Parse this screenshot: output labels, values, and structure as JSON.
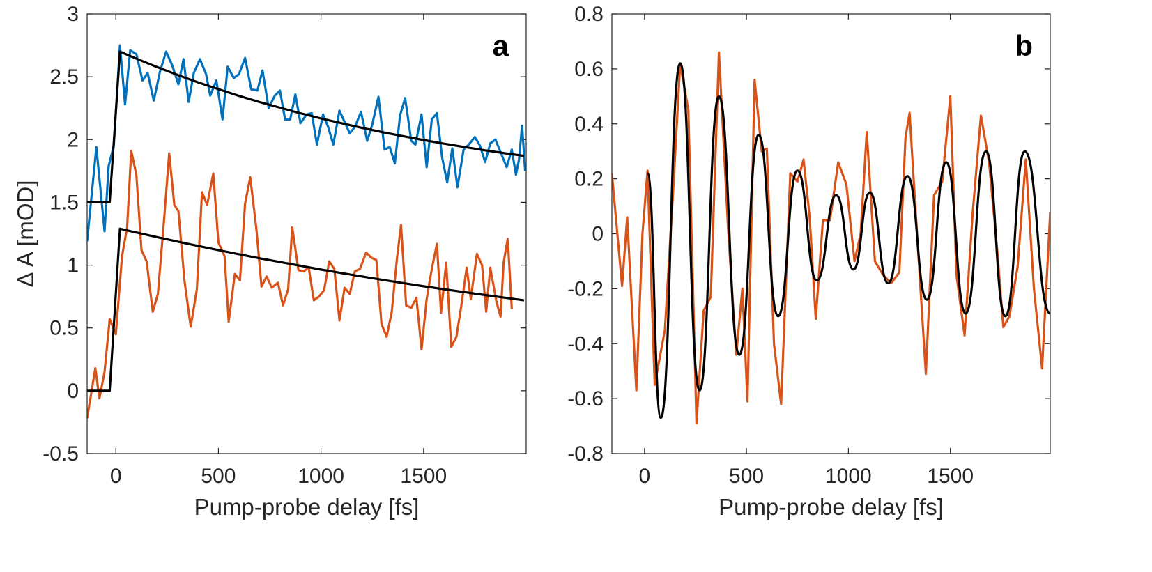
{
  "chart_data": [
    {
      "type": "line",
      "annotation": "a",
      "ylabel": "Δ A [mOD]",
      "xlabel": "Pump-probe delay [fs]",
      "xlim": [
        -140,
        2000
      ],
      "ylim": [
        -0.5,
        3
      ],
      "xticks": [
        0,
        500,
        1000,
        1500
      ],
      "yticks": [
        -0.5,
        0,
        0.5,
        1,
        1.5,
        2,
        2.5,
        3
      ],
      "series": [
        {
          "color": "#0072bd",
          "x": [
            -140,
            -95,
            -55,
            -35,
            -10,
            20,
            45,
            70,
            100,
            130,
            155,
            185,
            215,
            245,
            275,
            305,
            330,
            355,
            380,
            410,
            440,
            460,
            490,
            520,
            545,
            575,
            600,
            630,
            660,
            690,
            715,
            745,
            775,
            800,
            825,
            850,
            875,
            900,
            930,
            955,
            980,
            1010,
            1035,
            1060,
            1090,
            1115,
            1140,
            1165,
            1195,
            1225,
            1250,
            1280,
            1310,
            1335,
            1360,
            1385,
            1410,
            1440,
            1460,
            1490,
            1515,
            1540,
            1565,
            1590,
            1615,
            1640,
            1665,
            1695,
            1720,
            1750,
            1775,
            1800,
            1825,
            1850,
            1875,
            1905,
            1930,
            1950,
            1965,
            1980,
            1995
          ],
          "values": [
            1.19,
            1.94,
            1.27,
            1.79,
            1.95,
            2.75,
            2.28,
            2.71,
            2.68,
            2.47,
            2.53,
            2.31,
            2.54,
            2.7,
            2.59,
            2.44,
            2.64,
            2.3,
            2.53,
            2.64,
            2.52,
            2.35,
            2.47,
            2.16,
            2.58,
            2.49,
            2.52,
            2.65,
            2.4,
            2.39,
            2.55,
            2.25,
            2.35,
            2.39,
            2.16,
            2.16,
            2.36,
            2.13,
            2.2,
            2.21,
            1.96,
            2.2,
            2.1,
            1.96,
            2.23,
            2.14,
            2.05,
            2.1,
            2.22,
            1.99,
            2.12,
            2.34,
            1.92,
            1.94,
            1.81,
            2.19,
            2.33,
            1.99,
            1.96,
            2.2,
            1.78,
            2.16,
            2.21,
            1.86,
            1.66,
            1.93,
            1.62,
            1.92,
            1.96,
            2.02,
            1.95,
            1.82,
            1.97,
            2.0,
            1.9,
            1.78,
            1.92,
            1.72,
            1.84,
            2.11,
            1.75
          ]
        },
        {
          "color": "#d95319",
          "x": [
            -140,
            -100,
            -80,
            -55,
            -30,
            0,
            30,
            55,
            75,
            100,
            125,
            150,
            180,
            205,
            235,
            260,
            285,
            305,
            335,
            365,
            395,
            420,
            445,
            475,
            500,
            530,
            550,
            580,
            605,
            630,
            655,
            685,
            710,
            735,
            760,
            790,
            815,
            840,
            860,
            890,
            915,
            940,
            965,
            990,
            1015,
            1040,
            1065,
            1090,
            1115,
            1140,
            1165,
            1190,
            1220,
            1245,
            1270,
            1295,
            1320,
            1345,
            1370,
            1390,
            1415,
            1440,
            1465,
            1490,
            1515,
            1540,
            1565,
            1585,
            1610,
            1635,
            1660,
            1685,
            1710,
            1730,
            1760,
            1785,
            1805,
            1825,
            1855,
            1875,
            1890,
            1910,
            1930
          ],
          "values": [
            -0.22,
            0.18,
            -0.06,
            0.15,
            0.57,
            0.45,
            1.07,
            1.3,
            1.91,
            1.72,
            1.12,
            1.03,
            0.63,
            0.77,
            1.36,
            1.89,
            1.48,
            1.43,
            0.87,
            0.51,
            0.81,
            1.58,
            1.48,
            1.73,
            1.18,
            1.07,
            0.55,
            0.93,
            0.88,
            1.49,
            1.7,
            1.29,
            0.83,
            0.91,
            0.82,
            0.86,
            0.68,
            0.81,
            1.3,
            0.96,
            0.95,
            0.98,
            0.72,
            0.75,
            0.8,
            1.03,
            0.97,
            0.56,
            0.82,
            0.77,
            0.95,
            0.97,
            1.1,
            1.06,
            1.04,
            0.53,
            0.43,
            0.63,
            1.05,
            1.32,
            0.68,
            0.66,
            0.74,
            0.33,
            0.73,
            0.97,
            1.17,
            0.62,
            1.02,
            0.35,
            0.43,
            0.69,
            0.98,
            0.73,
            1.09,
            1.0,
            0.63,
            0.98,
            0.71,
            0.59,
            1.02,
            1.21,
            0.65
          ]
        },
        {
          "color": "#000000",
          "x": [
            -140,
            -30,
            20,
            100,
            200,
            300,
            400,
            500,
            600,
            700,
            800,
            900,
            1000,
            1100,
            1200,
            1300,
            1400,
            1500,
            1600,
            1700,
            1800,
            1900,
            1990
          ],
          "values": [
            1.5,
            1.5,
            2.7,
            2.644,
            2.578,
            2.515,
            2.456,
            2.401,
            2.348,
            2.299,
            2.254,
            2.209,
            2.168,
            2.13,
            2.093,
            2.059,
            2.027,
            1.996,
            1.967,
            1.94,
            1.914,
            1.89,
            1.87
          ]
        },
        {
          "color": "#000000",
          "x": [
            -140,
            -30,
            20,
            100,
            200,
            300,
            400,
            500,
            600,
            700,
            800,
            900,
            1000,
            1100,
            1200,
            1300,
            1400,
            1500,
            1600,
            1700,
            1800,
            1900,
            1990
          ],
          "values": [
            0,
            0,
            1.29,
            1.26,
            1.223,
            1.188,
            1.153,
            1.12,
            1.087,
            1.055,
            1.025,
            0.995,
            0.965,
            0.937,
            0.91,
            0.883,
            0.857,
            0.832,
            0.808,
            0.785,
            0.762,
            0.74,
            0.72
          ]
        }
      ]
    },
    {
      "type": "line",
      "annotation": "b",
      "xlabel": "Pump-probe delay [fs]",
      "xlim": [
        -160,
        1990
      ],
      "ylim": [
        -0.8,
        0.8
      ],
      "xticks": [
        0,
        500,
        1000,
        1500
      ],
      "yticks": [
        -0.8,
        -0.6,
        -0.4,
        -0.2,
        0,
        0.2,
        0.4,
        0.6,
        0.8
      ],
      "series": [
        {
          "color": "#d95319",
          "x": [
            -160,
            -110,
            -85,
            -40,
            -10,
            15,
            50,
            100,
            140,
            175,
            215,
            255,
            290,
            325,
            365,
            410,
            450,
            480,
            505,
            540,
            575,
            600,
            635,
            670,
            715,
            750,
            780,
            810,
            840,
            875,
            910,
            950,
            990,
            1030,
            1060,
            1090,
            1130,
            1170,
            1210,
            1250,
            1280,
            1300,
            1340,
            1380,
            1420,
            1460,
            1500,
            1530,
            1570,
            1610,
            1650,
            1690,
            1730,
            1760,
            1790,
            1830,
            1870,
            1910,
            1950,
            1990
          ],
          "values": [
            0.22,
            -0.19,
            0.06,
            -0.57,
            0.0,
            0.23,
            -0.55,
            -0.35,
            0.15,
            0.62,
            0.45,
            -0.69,
            -0.28,
            -0.23,
            0.66,
            0.02,
            -0.44,
            -0.2,
            -0.61,
            0.56,
            0.3,
            0.31,
            -0.4,
            -0.62,
            0.22,
            0.19,
            0.27,
            0.06,
            -0.31,
            0.05,
            0.05,
            0.26,
            0.18,
            -0.1,
            0.0,
            0.37,
            -0.1,
            -0.15,
            -0.18,
            -0.14,
            0.35,
            0.44,
            -0.04,
            -0.51,
            0.14,
            0.19,
            0.5,
            -0.15,
            -0.37,
            0.08,
            0.43,
            0.26,
            -0.06,
            -0.34,
            -0.3,
            -0.12,
            0.27,
            -0.2,
            -0.49,
            0.08
          ]
        },
        {
          "color": "#000000",
          "smooth": true,
          "x": [
            15,
            80,
            175,
            270,
            365,
            465,
            560,
            655,
            750,
            845,
            940,
            1025,
            1105,
            1195,
            1290,
            1385,
            1480,
            1575,
            1675,
            1770,
            1865,
            1990
          ],
          "values": [
            0.22,
            -0.67,
            0.62,
            -0.57,
            0.5,
            -0.44,
            0.36,
            -0.3,
            0.23,
            -0.17,
            0.14,
            -0.13,
            0.15,
            -0.18,
            0.21,
            -0.24,
            0.26,
            -0.29,
            0.3,
            -0.3,
            0.3,
            -0.29
          ]
        }
      ]
    }
  ]
}
